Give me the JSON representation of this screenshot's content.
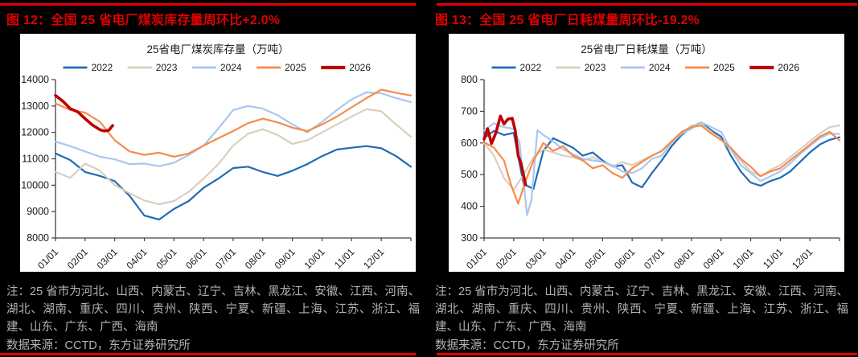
{
  "page": {
    "background": "#000000",
    "accent_red": "#e60000",
    "note_gray": "#b3b3b3"
  },
  "figures": [
    {
      "caption": "图 12：全国 25 省电厂煤炭库存量周环比+2.0%",
      "note": "注：25 省市为河北、山西、内蒙古、辽宁、吉林、黑龙江、安徽、江西、河南、湖北、湖南、重庆、四川、贵州、陕西、宁夏、新疆、上海、江苏、浙江、福建、山东、广东、广西、海南",
      "source": "数据来源：CCTD，东方证券研究所"
    },
    {
      "caption": "图 13：全国 25 省电厂日耗煤量周环比-19.2%",
      "note": "注：25 省市为河北、山西、内蒙古、辽宁、吉林、黑龙江、安徽、江西、河南、湖北、湖南、重庆、四川、贵州、陕西、宁夏、新疆、上海、江苏、浙江、福建、山东、广东、广西、海南",
      "source": "数据来源：CCTD，东方证券研究所"
    }
  ],
  "chart_data": [
    {
      "id": "coal-inventory",
      "type": "line",
      "title": "25省电厂煤炭库存量（万吨）",
      "xlabel": "",
      "ylabel": "",
      "ylim": [
        8000,
        14000
      ],
      "ytick_step": 1000,
      "grid": false,
      "legend_position": "top",
      "xtick_labels": [
        "01/01",
        "02/01",
        "03/01",
        "04/01",
        "05/01",
        "06/01",
        "07/01",
        "08/01",
        "09/01",
        "10/01",
        "11/01",
        "12/01"
      ],
      "series": [
        {
          "name": "2022",
          "color": "#1F6CB4",
          "width": 2.2,
          "values": [
            11200,
            10950,
            10500,
            10350,
            10150,
            9600,
            8850,
            8700,
            9100,
            9400,
            9900,
            10250,
            10650,
            10700,
            10500,
            10350,
            10550,
            10800,
            11100,
            11350,
            11420,
            11480,
            11400,
            11100,
            10700
          ]
        },
        {
          "name": "2023",
          "color": "#D9CFBE",
          "width": 2.2,
          "values": [
            10500,
            10280,
            10820,
            10550,
            10000,
            9700,
            9420,
            9280,
            9400,
            9750,
            10250,
            10800,
            11500,
            11950,
            12120,
            11900,
            11560,
            11700,
            12000,
            12300,
            12600,
            12880,
            12800,
            12300,
            11830
          ]
        },
        {
          "name": "2024",
          "color": "#A9C7F2",
          "width": 2.2,
          "values": [
            11650,
            11480,
            11280,
            11080,
            10980,
            10800,
            10820,
            10720,
            10850,
            11150,
            11500,
            12150,
            12850,
            13000,
            12900,
            12650,
            12300,
            12000,
            12400,
            12850,
            13250,
            13520,
            13480,
            13300,
            13150
          ]
        },
        {
          "name": "2025",
          "color": "#F68B4B",
          "width": 2.2,
          "values": [
            13100,
            12850,
            12750,
            12400,
            11700,
            11280,
            11150,
            11230,
            11080,
            11200,
            11500,
            11780,
            12050,
            12350,
            12520,
            12380,
            12180,
            12050,
            12300,
            12600,
            12950,
            13300,
            13620,
            13500,
            13400
          ]
        },
        {
          "name": "2026",
          "color": "#BF0000",
          "width": 3.6,
          "x": [
            0,
            0.25,
            0.5,
            0.75,
            1.0,
            1.25,
            1.5,
            1.65,
            1.8,
            1.93
          ],
          "values": [
            13400,
            13180,
            12900,
            12780,
            12520,
            12280,
            12100,
            12050,
            12080,
            12260
          ]
        }
      ]
    },
    {
      "id": "daily-coal-consumption",
      "type": "line",
      "title": "25省电厂日耗煤量（万吨）",
      "xlabel": "",
      "ylabel": "",
      "ylim": [
        300,
        800
      ],
      "ytick_step": 100,
      "grid": false,
      "legend_position": "top",
      "xtick_labels": [
        "01/01",
        "02/01",
        "03/01",
        "04/01",
        "05/01",
        "06/01",
        "07/01",
        "08/01",
        "09/01",
        "10/01",
        "11/01",
        "12/01"
      ],
      "series": [
        {
          "name": "2022",
          "color": "#1F6CB4",
          "width": 2.2,
          "values": [
            615,
            638,
            625,
            632,
            470,
            455,
            575,
            615,
            600,
            585,
            560,
            570,
            545,
            525,
            530,
            475,
            460,
            505,
            545,
            590,
            625,
            650,
            665,
            640,
            620,
            560,
            510,
            475,
            465,
            480,
            490,
            510,
            540,
            570,
            595,
            610,
            618
          ]
        },
        {
          "name": "2023",
          "color": "#D9CFBE",
          "width": 2.2,
          "values": [
            600,
            560,
            490,
            452,
            500,
            555,
            580,
            570,
            560,
            555,
            545,
            555,
            540,
            525,
            540,
            530,
            545,
            560,
            575,
            605,
            630,
            655,
            660,
            635,
            610,
            580,
            545,
            510,
            495,
            515,
            530,
            555,
            580,
            605,
            630,
            650,
            655
          ]
        },
        {
          "name": "2024",
          "color": "#A9C7F2",
          "width": 2.2,
          "x": [
            0,
            0.33,
            0.67,
            1.0,
            1.2,
            1.45,
            1.6,
            1.8,
            2.0,
            2.33,
            2.67,
            3,
            3.33,
            3.67,
            4,
            4.33,
            4.67,
            5,
            5.33,
            5.67,
            6,
            6.33,
            6.67,
            7,
            7.33,
            7.67,
            8,
            8.33,
            8.67,
            9,
            9.33,
            9.67,
            10,
            10.33,
            10.67,
            11,
            11.33,
            11.67,
            12
          ],
          "values": [
            640,
            662,
            650,
            645,
            600,
            372,
            420,
            640,
            625,
            605,
            580,
            565,
            550,
            545,
            540,
            530,
            510,
            505,
            520,
            550,
            560,
            600,
            630,
            645,
            665,
            650,
            635,
            580,
            530,
            505,
            480,
            495,
            510,
            535,
            565,
            590,
            615,
            630,
            628
          ]
        },
        {
          "name": "2025",
          "color": "#F68B4B",
          "width": 2.2,
          "x": [
            0,
            0.33,
            0.67,
            0.9,
            1.15,
            1.4,
            1.67,
            2,
            2.33,
            2.67,
            3,
            3.33,
            3.67,
            4,
            4.33,
            4.67,
            5,
            5.33,
            5.67,
            6,
            6.33,
            6.67,
            7,
            7.33,
            7.67,
            8,
            8.33,
            8.67,
            9,
            9.33,
            9.67,
            10,
            10.33,
            10.67,
            11,
            11.33,
            11.67,
            12
          ],
          "values": [
            602,
            585,
            545,
            470,
            408,
            480,
            545,
            600,
            575,
            590,
            560,
            545,
            520,
            530,
            505,
            490,
            520,
            540,
            560,
            575,
            605,
            635,
            650,
            655,
            630,
            610,
            585,
            550,
            525,
            495,
            510,
            520,
            545,
            570,
            595,
            620,
            635,
            608
          ]
        },
        {
          "name": "2026",
          "color": "#BF0000",
          "width": 3.6,
          "x": [
            0,
            0.12,
            0.25,
            0.4,
            0.55,
            0.67,
            0.8,
            0.95,
            1.05,
            1.15,
            1.25,
            1.4
          ],
          "values": [
            612,
            645,
            598,
            632,
            685,
            660,
            675,
            678,
            640,
            560,
            535,
            468
          ]
        }
      ]
    }
  ]
}
